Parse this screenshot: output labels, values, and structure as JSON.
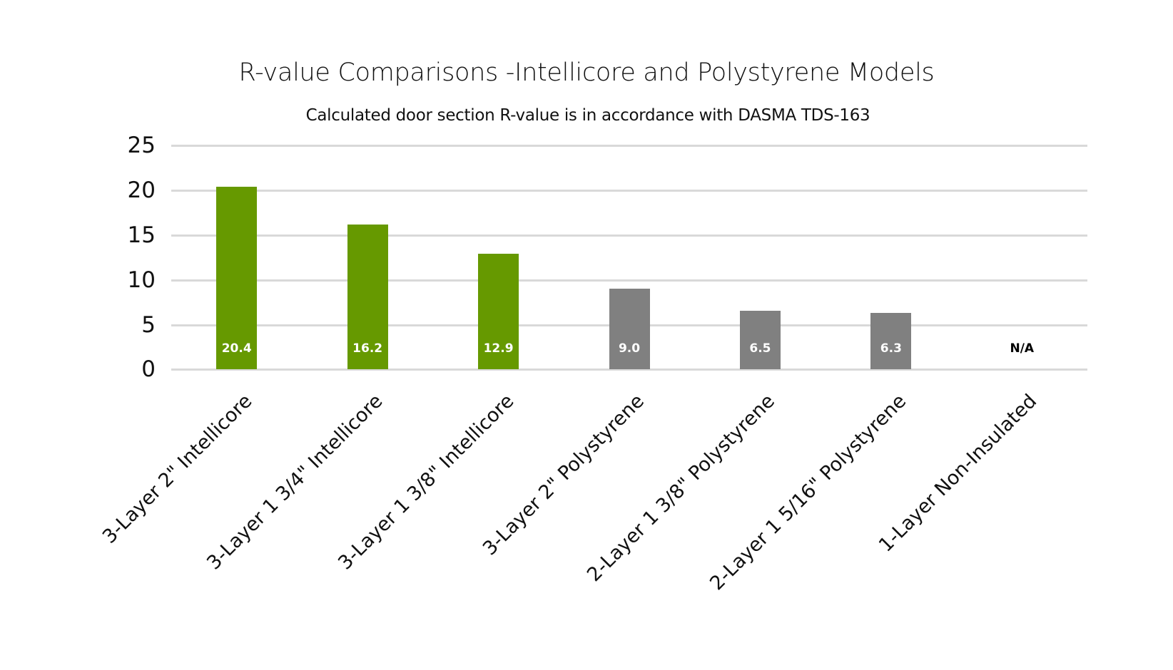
{
  "chart_data": {
    "type": "bar",
    "title": "R-value Comparisons -Intellicore and Polystyrene Models",
    "subtitle": "Calculated door section R-value is in accordance with DASMA TDS-163",
    "xlabel": "",
    "ylabel": "",
    "ylim": [
      0,
      25
    ],
    "yticks": [
      "0",
      "5",
      "10",
      "15",
      "20",
      "25"
    ],
    "grid": true,
    "legend": null,
    "categories": [
      "3-Layer 2\" Intellicore",
      "3-Layer 1 3/4\" Intellicore",
      "3-Layer 1 3/8\" Intellicore",
      "3-Layer 2\" Polystyrene",
      "2-Layer 1 3/8\" Polystyrene",
      "2-Layer 1 5/16\" Polystyrene",
      "1-Layer Non-Insulated"
    ],
    "values": [
      20.4,
      16.2,
      12.9,
      9.0,
      6.5,
      6.3,
      null
    ],
    "data_labels": [
      "20.4",
      "16.2",
      "12.9",
      "9.0",
      "6.5",
      "6.3",
      "N/A"
    ],
    "bar_colors": [
      "#669900",
      "#669900",
      "#669900",
      "#808080",
      "#808080",
      "#808080",
      null
    ]
  },
  "colors": {
    "intellicore": "#669900",
    "polystyrene": "#808080",
    "gridline": "#d9d9d9"
  }
}
